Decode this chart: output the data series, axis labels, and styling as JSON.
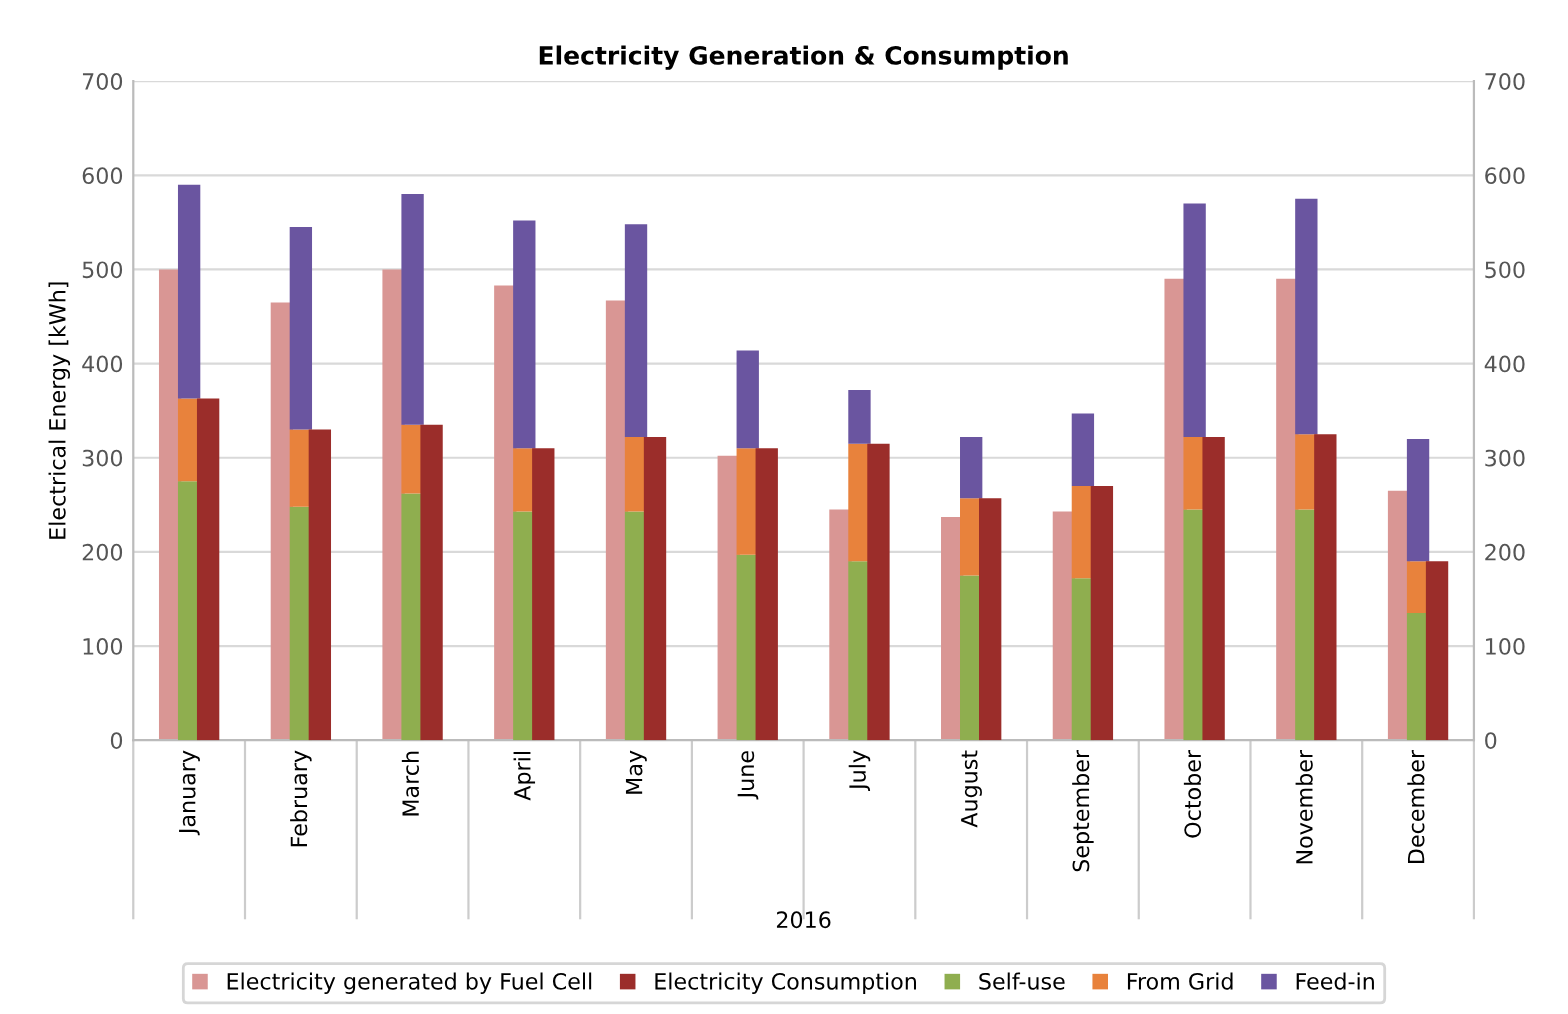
{
  "chart_data": {
    "type": "bar",
    "title": "Electricity Generation & Consumption",
    "xlabel": "2016",
    "ylabel": "Electrical Energy [kWh]",
    "categories": [
      "January",
      "February",
      "March",
      "April",
      "May",
      "June",
      "July",
      "August",
      "September",
      "October",
      "November",
      "December"
    ],
    "series": [
      {
        "name": "Electricity generated by Fuel Cell",
        "color": "#d99694",
        "values": [
          500,
          465,
          500,
          483,
          467,
          302,
          245,
          237,
          243,
          490,
          490,
          265
        ]
      },
      {
        "name": "Electricity Consumption",
        "color": "#9b2d2a",
        "values": [
          363,
          330,
          335,
          310,
          322,
          310,
          315,
          257,
          270,
          322,
          325,
          190
        ]
      },
      {
        "name": "Self-use",
        "color": "#8fae4f",
        "base": [
          0,
          0,
          0,
          0,
          0,
          0,
          0,
          0,
          0,
          0,
          0,
          0
        ],
        "values": [
          275,
          248,
          262,
          243,
          243,
          197,
          190,
          175,
          172,
          245,
          245,
          135
        ]
      },
      {
        "name": "From Grid",
        "color": "#e8823c",
        "base": [
          275,
          248,
          262,
          243,
          243,
          197,
          190,
          175,
          172,
          245,
          245,
          135
        ],
        "values": [
          88,
          82,
          73,
          67,
          79,
          113,
          125,
          82,
          98,
          77,
          80,
          55
        ]
      },
      {
        "name": "Feed-in",
        "color": "#6a55a0",
        "base": [
          363,
          330,
          335,
          310,
          322,
          310,
          315,
          257,
          270,
          322,
          325,
          190
        ],
        "values": [
          227,
          215,
          245,
          242,
          226,
          104,
          57,
          65,
          77,
          248,
          250,
          130
        ]
      }
    ],
    "ylim": [
      0,
      700
    ],
    "yticks": [
      0,
      100,
      200,
      300,
      400,
      500,
      600,
      700
    ],
    "y2lim": [
      0,
      700
    ],
    "y2ticks": [
      0,
      100,
      200,
      300,
      400,
      500,
      600,
      700
    ],
    "grid": "y",
    "legend": "bottom"
  }
}
